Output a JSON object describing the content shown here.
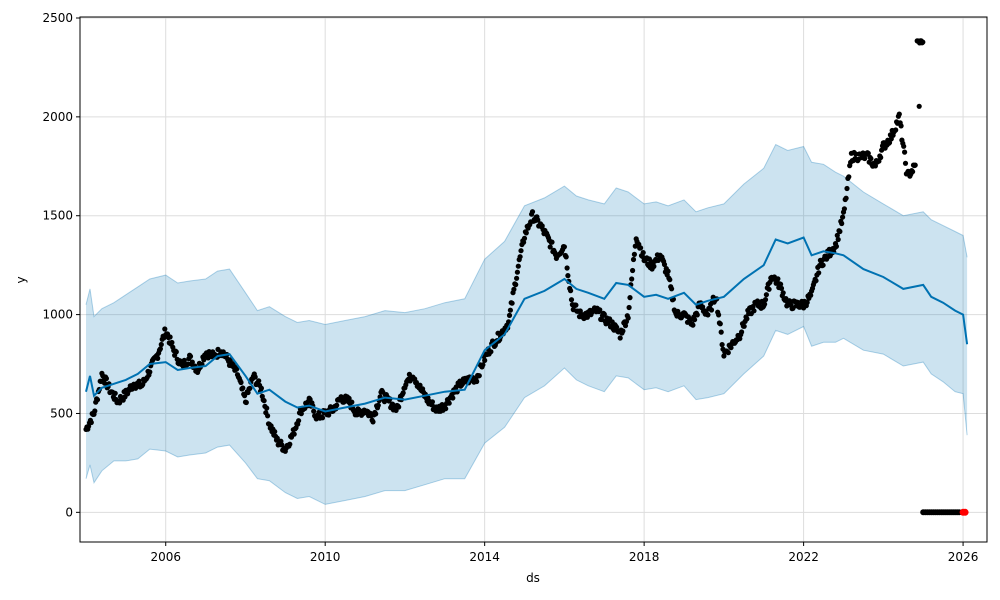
{
  "chart_data": {
    "type": "line",
    "title": "",
    "xlabel": "ds",
    "ylabel": "y",
    "xlim": [
      2003.85,
      2026.6
    ],
    "ylim": [
      -150,
      2505
    ],
    "grid": true,
    "x_ticks": [
      2006,
      2010,
      2014,
      2018,
      2022,
      2026
    ],
    "x_tick_labels": [
      "2006",
      "2010",
      "2014",
      "2018",
      "2022",
      "2026"
    ],
    "y_ticks": [
      0,
      500,
      1000,
      1500,
      2000,
      2500
    ],
    "y_tick_labels": [
      "0",
      "500",
      "1000",
      "1500",
      "2000",
      "2500"
    ],
    "colors": {
      "forecast": "#0072B2",
      "interval": "#0072B2",
      "observed": "#000000",
      "highlight": "#ff0000",
      "grid": "#dddddd"
    },
    "series": [
      {
        "role": "forecast",
        "x": [
          2004.0,
          2004.1,
          2004.2,
          2004.4,
          2004.7,
          2005.0,
          2005.3,
          2005.6,
          2006.0,
          2006.3,
          2006.6,
          2007.0,
          2007.3,
          2007.6,
          2008.0,
          2008.3,
          2008.6,
          2009.0,
          2009.3,
          2009.6,
          2010.0,
          2010.5,
          2011.0,
          2011.5,
          2012.0,
          2012.5,
          2013.0,
          2013.5,
          2014.0,
          2014.5,
          2015.0,
          2015.5,
          2016.0,
          2016.3,
          2016.6,
          2017.0,
          2017.3,
          2017.6,
          2018.0,
          2018.3,
          2018.6,
          2019.0,
          2019.3,
          2019.6,
          2020.0,
          2020.5,
          2021.0,
          2021.3,
          2021.6,
          2022.0,
          2022.2,
          2022.5,
          2022.8,
          2023.0,
          2023.5,
          2024.0,
          2024.5,
          2025.0,
          2025.2,
          2025.5,
          2025.8,
          2026.0,
          2026.1
        ],
        "y": [
          610,
          690,
          590,
          630,
          650,
          670,
          700,
          750,
          760,
          720,
          730,
          740,
          790,
          800,
          690,
          600,
          620,
          560,
          530,
          540,
          510,
          530,
          550,
          580,
          570,
          590,
          610,
          620,
          820,
          900,
          1080,
          1120,
          1180,
          1130,
          1110,
          1080,
          1160,
          1150,
          1090,
          1100,
          1080,
          1110,
          1050,
          1070,
          1090,
          1180,
          1250,
          1380,
          1360,
          1390,
          1300,
          1320,
          1310,
          1300,
          1230,
          1190,
          1130,
          1150,
          1090,
          1060,
          1020,
          1000,
          850
        ],
        "upper": [
          1050,
          1130,
          990,
          1030,
          1060,
          1100,
          1140,
          1180,
          1200,
          1160,
          1170,
          1180,
          1220,
          1230,
          1110,
          1020,
          1040,
          990,
          960,
          970,
          950,
          970,
          990,
          1020,
          1010,
          1030,
          1060,
          1080,
          1280,
          1370,
          1550,
          1590,
          1650,
          1600,
          1580,
          1560,
          1640,
          1620,
          1560,
          1570,
          1550,
          1580,
          1520,
          1540,
          1560,
          1660,
          1740,
          1860,
          1830,
          1850,
          1770,
          1760,
          1720,
          1700,
          1620,
          1560,
          1500,
          1520,
          1480,
          1450,
          1420,
          1400,
          1290
        ],
        "lower": [
          170,
          240,
          150,
          210,
          260,
          260,
          270,
          320,
          310,
          280,
          290,
          300,
          330,
          340,
          250,
          170,
          160,
          100,
          70,
          80,
          40,
          60,
          80,
          110,
          110,
          140,
          170,
          170,
          350,
          430,
          580,
          640,
          730,
          670,
          640,
          610,
          690,
          680,
          620,
          630,
          610,
          640,
          570,
          580,
          600,
          700,
          790,
          920,
          900,
          940,
          840,
          860,
          860,
          880,
          820,
          800,
          740,
          760,
          700,
          660,
          610,
          600,
          390
        ]
      },
      {
        "role": "observed",
        "x": [
          2004.0,
          2004.2,
          2004.4,
          2004.6,
          2004.8,
          2005.0,
          2005.2,
          2005.4,
          2005.6,
          2005.8,
          2006.0,
          2006.2,
          2006.4,
          2006.6,
          2006.8,
          2007.0,
          2007.2,
          2007.4,
          2007.6,
          2007.8,
          2008.0,
          2008.2,
          2008.4,
          2008.6,
          2008.8,
          2009.0,
          2009.2,
          2009.4,
          2009.6,
          2009.8,
          2010.0,
          2010.2,
          2010.4,
          2010.6,
          2010.8,
          2011.0,
          2011.2,
          2011.4,
          2011.6,
          2011.8,
          2012.0,
          2012.2,
          2012.4,
          2012.6,
          2012.8,
          2013.0,
          2013.2,
          2013.4,
          2013.6,
          2013.8,
          2014.0,
          2014.2,
          2014.4,
          2014.6,
          2014.8,
          2015.0,
          2015.2,
          2015.4,
          2015.6,
          2015.8,
          2016.0,
          2016.2,
          2016.4,
          2016.6,
          2016.8,
          2017.0,
          2017.2,
          2017.4,
          2017.6,
          2017.8,
          2018.0,
          2018.2,
          2018.4,
          2018.6,
          2018.8,
          2019.0,
          2019.2,
          2019.4,
          2019.6,
          2019.8,
          2020.0,
          2020.2,
          2020.4,
          2020.6,
          2020.8,
          2021.0,
          2021.2,
          2021.4,
          2021.6,
          2021.8,
          2022.0,
          2022.2,
          2022.4,
          2022.6,
          2022.8,
          2023.0,
          2023.2,
          2023.4,
          2023.6,
          2023.8,
          2024.0,
          2024.2,
          2024.4,
          2024.6,
          2024.8,
          2025.0
        ],
        "y": [
          420,
          500,
          700,
          620,
          560,
          600,
          650,
          640,
          720,
          800,
          920,
          820,
          740,
          780,
          720,
          810,
          790,
          820,
          760,
          700,
          560,
          690,
          620,
          450,
          360,
          320,
          400,
          520,
          560,
          480,
          500,
          520,
          580,
          560,
          500,
          520,
          480,
          600,
          560,
          520,
          650,
          700,
          620,
          560,
          520,
          540,
          600,
          650,
          670,
          680,
          780,
          850,
          900,
          960,
          1200,
          1400,
          1500,
          1450,
          1380,
          1300,
          1350,
          1050,
          1000,
          1000,
          1020,
          980,
          950,
          900,
          1000,
          1400,
          1280,
          1250,
          1300,
          1200,
          1000,
          1000,
          950,
          1050,
          1000,
          1100,
          800,
          850,
          900,
          1000,
          1050,
          1050,
          1200,
          1150,
          1050,
          1050,
          1050,
          1100,
          1250,
          1300,
          1350,
          1500,
          1800,
          1800,
          1800,
          1750,
          1850,
          1900,
          2000,
          1700,
          1750,
          2380
        ]
      },
      {
        "role": "observed-zero",
        "x": [
          2025.0,
          2025.5,
          2025.9
        ],
        "y": [
          0,
          0,
          0
        ]
      },
      {
        "role": "highlight",
        "x": [
          2026.0,
          2026.05
        ],
        "y": [
          0,
          0
        ]
      }
    ]
  }
}
